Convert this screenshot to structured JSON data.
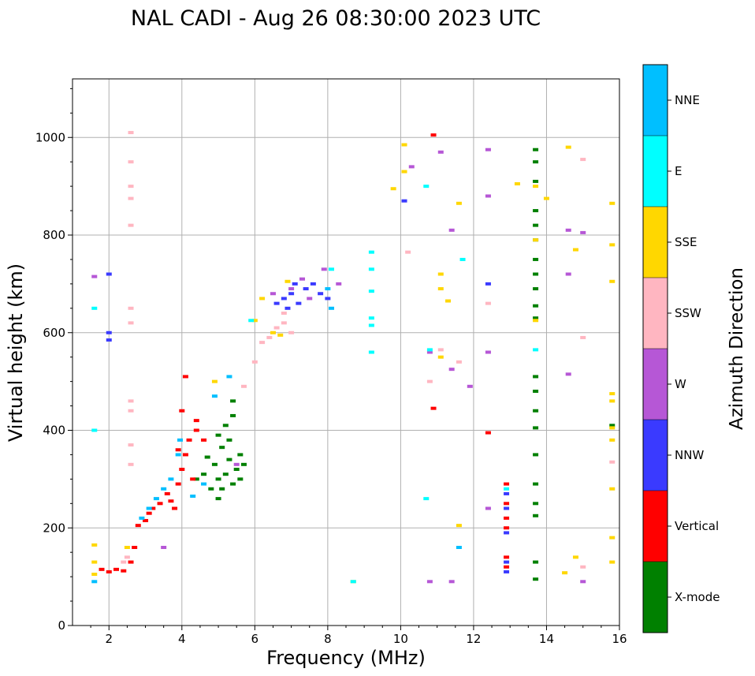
{
  "chart_data": {
    "type": "scatter",
    "title": "NAL CADI - Aug 26 08:30:00 2023 UTC",
    "xlabel": "Frequency (MHz)",
    "ylabel": "Virtual height (km)",
    "xlim": [
      1,
      16
    ],
    "ylim": [
      0,
      1120
    ],
    "xticks": [
      2,
      4,
      6,
      8,
      10,
      12,
      14,
      16
    ],
    "yticks": [
      0,
      200,
      400,
      600,
      800,
      1000
    ],
    "grid": true,
    "colorbar": {
      "label": "Azimuth Direction",
      "placement": "right",
      "categories": [
        "X-mode",
        "Vertical",
        "NNW",
        "W",
        "SSW",
        "SSE",
        "E",
        "NNE"
      ],
      "colors": [
        "#008000",
        "#ff0000",
        "#3a3aff",
        "#b657d6",
        "#ffb6c1",
        "#ffd700",
        "#00ffff",
        "#00bfff"
      ]
    },
    "series": [
      {
        "name": "X-mode",
        "points": [
          [
            4.7,
            345
          ],
          [
            4.9,
            330
          ],
          [
            5.0,
            300
          ],
          [
            5.1,
            365
          ],
          [
            5.2,
            310
          ],
          [
            5.3,
            340
          ],
          [
            5.4,
            290
          ],
          [
            5.5,
            320
          ],
          [
            5.3,
            380
          ],
          [
            5.6,
            350
          ],
          [
            4.8,
            280
          ],
          [
            5.0,
            390
          ],
          [
            5.2,
            410
          ],
          [
            5.4,
            430
          ],
          [
            5.6,
            300
          ],
          [
            5.7,
            330
          ],
          [
            5.1,
            280
          ],
          [
            4.6,
            310
          ],
          [
            5.0,
            260
          ],
          [
            4.4,
            300
          ],
          [
            5.4,
            460
          ],
          [
            13.7,
            975
          ],
          [
            13.7,
            950
          ],
          [
            13.7,
            910
          ],
          [
            13.7,
            850
          ],
          [
            13.7,
            820
          ],
          [
            13.7,
            790
          ],
          [
            13.7,
            750
          ],
          [
            13.7,
            720
          ],
          [
            13.7,
            690
          ],
          [
            13.7,
            655
          ],
          [
            13.7,
            630
          ],
          [
            13.7,
            510
          ],
          [
            13.7,
            480
          ],
          [
            13.7,
            440
          ],
          [
            13.7,
            405
          ],
          [
            13.7,
            350
          ],
          [
            13.7,
            290
          ],
          [
            13.7,
            250
          ],
          [
            13.7,
            225
          ],
          [
            13.7,
            130
          ],
          [
            13.7,
            95
          ],
          [
            15.8,
            410
          ]
        ]
      },
      {
        "name": "Vertical",
        "points": [
          [
            1.8,
            115
          ],
          [
            2.0,
            110
          ],
          [
            2.2,
            115
          ],
          [
            2.4,
            112
          ],
          [
            2.6,
            130
          ],
          [
            2.7,
            160
          ],
          [
            2.8,
            205
          ],
          [
            3.0,
            215
          ],
          [
            3.1,
            230
          ],
          [
            3.2,
            240
          ],
          [
            3.4,
            250
          ],
          [
            3.6,
            270
          ],
          [
            3.7,
            255
          ],
          [
            3.8,
            240
          ],
          [
            3.9,
            290
          ],
          [
            4.0,
            320
          ],
          [
            4.1,
            350
          ],
          [
            4.2,
            380
          ],
          [
            4.3,
            300
          ],
          [
            4.4,
            400
          ],
          [
            3.9,
            360
          ],
          [
            4.0,
            440
          ],
          [
            4.1,
            510
          ],
          [
            4.4,
            420
          ],
          [
            4.6,
            380
          ],
          [
            12.4,
            395
          ],
          [
            12.9,
            290
          ],
          [
            12.9,
            250
          ],
          [
            12.9,
            220
          ],
          [
            12.9,
            200
          ],
          [
            12.9,
            140
          ],
          [
            12.9,
            120
          ],
          [
            10.9,
            445
          ],
          [
            10.9,
            1005
          ]
        ]
      },
      {
        "name": "NNW",
        "points": [
          [
            2.0,
            720
          ],
          [
            2.0,
            600
          ],
          [
            2.0,
            585
          ],
          [
            6.6,
            660
          ],
          [
            6.8,
            670
          ],
          [
            7.0,
            680
          ],
          [
            7.2,
            660
          ],
          [
            7.4,
            690
          ],
          [
            7.6,
            700
          ],
          [
            7.8,
            680
          ],
          [
            8.0,
            670
          ],
          [
            7.1,
            700
          ],
          [
            6.9,
            650
          ],
          [
            10.1,
            870
          ],
          [
            12.4,
            700
          ],
          [
            12.9,
            270
          ],
          [
            12.9,
            240
          ],
          [
            12.9,
            190
          ],
          [
            12.9,
            130
          ],
          [
            12.9,
            110
          ]
        ]
      },
      {
        "name": "W",
        "points": [
          [
            1.6,
            715
          ],
          [
            6.5,
            680
          ],
          [
            7.0,
            690
          ],
          [
            7.3,
            710
          ],
          [
            7.5,
            670
          ],
          [
            7.9,
            730
          ],
          [
            8.3,
            700
          ],
          [
            10.3,
            940
          ],
          [
            10.8,
            560
          ],
          [
            10.8,
            90
          ],
          [
            11.1,
            970
          ],
          [
            11.4,
            90
          ],
          [
            11.4,
            525
          ],
          [
            11.4,
            810
          ],
          [
            12.4,
            975
          ],
          [
            12.4,
            880
          ],
          [
            12.4,
            560
          ],
          [
            12.4,
            240
          ],
          [
            11.9,
            490
          ],
          [
            14.6,
            810
          ],
          [
            14.6,
            720
          ],
          [
            14.6,
            515
          ],
          [
            15.0,
            805
          ],
          [
            15.0,
            90
          ],
          [
            3.5,
            160
          ],
          [
            5.5,
            330
          ]
        ]
      },
      {
        "name": "SSW",
        "points": [
          [
            2.6,
            1010
          ],
          [
            2.6,
            950
          ],
          [
            2.6,
            900
          ],
          [
            2.6,
            875
          ],
          [
            2.6,
            820
          ],
          [
            2.6,
            650
          ],
          [
            2.6,
            620
          ],
          [
            2.6,
            460
          ],
          [
            2.6,
            440
          ],
          [
            2.6,
            370
          ],
          [
            2.6,
            330
          ],
          [
            2.4,
            130
          ],
          [
            2.5,
            140
          ],
          [
            6.0,
            540
          ],
          [
            6.2,
            580
          ],
          [
            6.4,
            590
          ],
          [
            6.6,
            610
          ],
          [
            6.8,
            620
          ],
          [
            7.0,
            600
          ],
          [
            5.7,
            490
          ],
          [
            10.2,
            765
          ],
          [
            10.8,
            500
          ],
          [
            11.1,
            565
          ],
          [
            11.6,
            540
          ],
          [
            12.4,
            660
          ],
          [
            15.0,
            955
          ],
          [
            15.0,
            590
          ],
          [
            15.0,
            120
          ],
          [
            15.8,
            335
          ],
          [
            6.8,
            640
          ]
        ]
      },
      {
        "name": "SSE",
        "points": [
          [
            1.6,
            165
          ],
          [
            1.6,
            130
          ],
          [
            1.6,
            105
          ],
          [
            2.5,
            160
          ],
          [
            6.0,
            625
          ],
          [
            6.2,
            670
          ],
          [
            6.5,
            600
          ],
          [
            6.7,
            595
          ],
          [
            6.9,
            705
          ],
          [
            4.9,
            500
          ],
          [
            10.1,
            985
          ],
          [
            10.1,
            930
          ],
          [
            9.8,
            895
          ],
          [
            11.1,
            720
          ],
          [
            11.1,
            690
          ],
          [
            11.1,
            550
          ],
          [
            11.6,
            865
          ],
          [
            11.6,
            205
          ],
          [
            11.3,
            665
          ],
          [
            13.2,
            905
          ],
          [
            13.7,
            900
          ],
          [
            13.7,
            790
          ],
          [
            13.7,
            625
          ],
          [
            14.0,
            875
          ],
          [
            14.6,
            980
          ],
          [
            14.5,
            108
          ],
          [
            14.8,
            770
          ],
          [
            14.8,
            140
          ],
          [
            15.8,
            865
          ],
          [
            15.8,
            780
          ],
          [
            15.8,
            705
          ],
          [
            15.8,
            475
          ],
          [
            15.8,
            460
          ],
          [
            15.8,
            405
          ],
          [
            15.8,
            380
          ],
          [
            15.8,
            280
          ],
          [
            15.8,
            180
          ],
          [
            15.8,
            130
          ],
          [
            8.7,
            90
          ]
        ]
      },
      {
        "name": "E",
        "points": [
          [
            1.6,
            650
          ],
          [
            1.6,
            400
          ],
          [
            5.9,
            625
          ],
          [
            8.1,
            730
          ],
          [
            9.2,
            765
          ],
          [
            9.2,
            730
          ],
          [
            9.2,
            685
          ],
          [
            9.2,
            630
          ],
          [
            9.2,
            615
          ],
          [
            9.2,
            560
          ],
          [
            10.7,
            900
          ],
          [
            10.7,
            260
          ],
          [
            10.8,
            565
          ],
          [
            11.7,
            750
          ],
          [
            13.7,
            565
          ],
          [
            12.9,
            280
          ],
          [
            8.7,
            90
          ]
        ]
      },
      {
        "name": "NNE",
        "points": [
          [
            1.6,
            90
          ],
          [
            2.9,
            220
          ],
          [
            3.1,
            240
          ],
          [
            3.3,
            260
          ],
          [
            3.5,
            280
          ],
          [
            3.7,
            300
          ],
          [
            3.9,
            350
          ],
          [
            3.95,
            380
          ],
          [
            4.3,
            265
          ],
          [
            4.6,
            290
          ],
          [
            4.9,
            470
          ],
          [
            5.3,
            510
          ],
          [
            8.0,
            690
          ],
          [
            8.1,
            650
          ],
          [
            11.6,
            160
          ]
        ]
      }
    ]
  }
}
